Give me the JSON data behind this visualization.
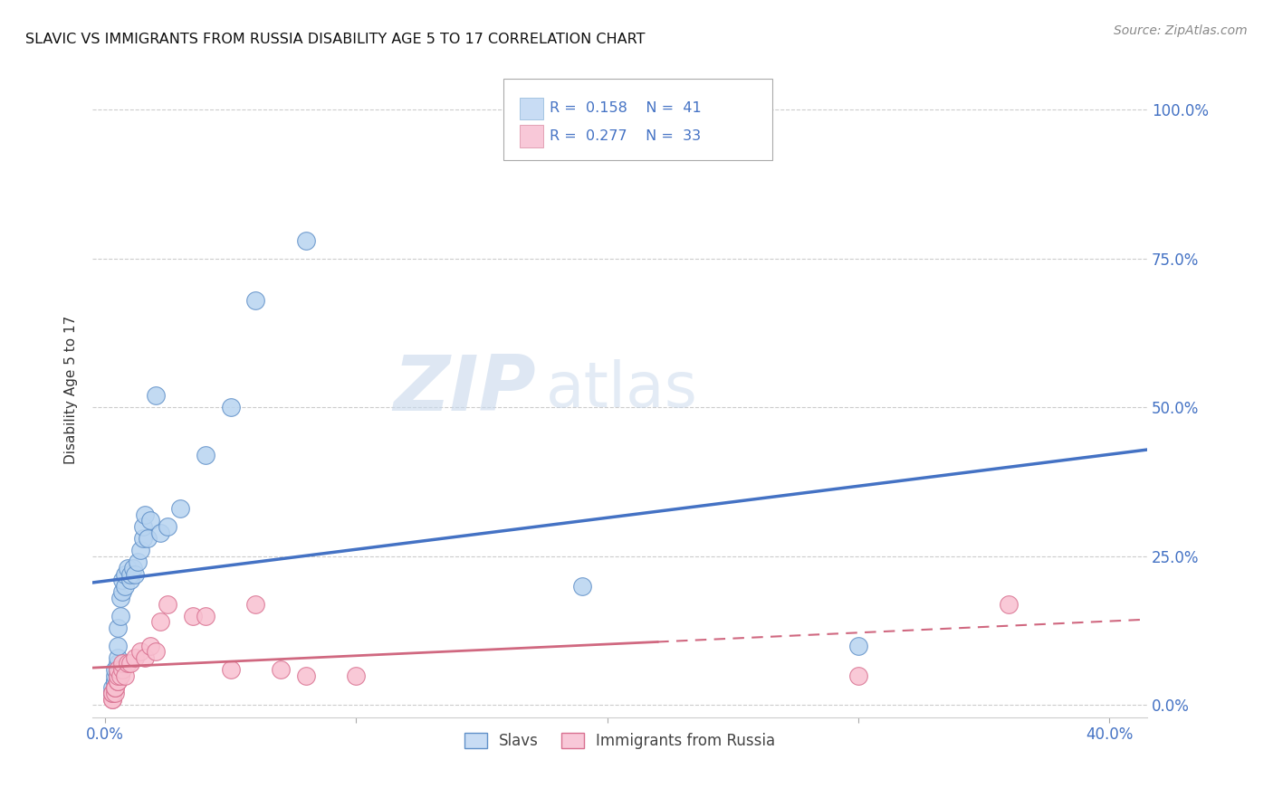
{
  "title": "SLAVIC VS IMMIGRANTS FROM RUSSIA DISABILITY AGE 5 TO 17 CORRELATION CHART",
  "source": "Source: ZipAtlas.com",
  "xlabel_ticks_show": [
    "0.0%",
    "40.0%"
  ],
  "xlabel_tick_vals_show": [
    0.0,
    0.4
  ],
  "ylabel": "Disability Age 5 to 17",
  "ylabel_ticks": [
    "0.0%",
    "25.0%",
    "50.0%",
    "75.0%",
    "100.0%"
  ],
  "ylabel_tick_vals": [
    0.0,
    0.25,
    0.5,
    0.75,
    1.0
  ],
  "xmin": -0.005,
  "xmax": 0.415,
  "ymin": -0.02,
  "ymax": 1.08,
  "slavs_R": 0.158,
  "slavs_N": 41,
  "russia_R": 0.277,
  "russia_N": 33,
  "slavs_color": "#B8D4F0",
  "russia_color": "#F8C0D0",
  "slavs_edge_color": "#6090C8",
  "russia_edge_color": "#D87090",
  "slavs_line_color": "#4472C4",
  "russia_line_color": "#D06880",
  "slavs_x": [
    0.003,
    0.003,
    0.003,
    0.004,
    0.004,
    0.004,
    0.004,
    0.005,
    0.005,
    0.005,
    0.005,
    0.005,
    0.005,
    0.006,
    0.006,
    0.007,
    0.007,
    0.008,
    0.008,
    0.009,
    0.01,
    0.01,
    0.011,
    0.012,
    0.013,
    0.014,
    0.015,
    0.015,
    0.016,
    0.017,
    0.018,
    0.02,
    0.022,
    0.025,
    0.03,
    0.04,
    0.05,
    0.06,
    0.08,
    0.19,
    0.3
  ],
  "slavs_y": [
    0.02,
    0.02,
    0.03,
    0.04,
    0.04,
    0.05,
    0.06,
    0.05,
    0.06,
    0.07,
    0.08,
    0.1,
    0.13,
    0.15,
    0.18,
    0.19,
    0.21,
    0.2,
    0.22,
    0.23,
    0.21,
    0.22,
    0.23,
    0.22,
    0.24,
    0.26,
    0.28,
    0.3,
    0.32,
    0.28,
    0.31,
    0.52,
    0.29,
    0.3,
    0.33,
    0.42,
    0.5,
    0.68,
    0.78,
    0.2,
    0.1
  ],
  "russia_x": [
    0.003,
    0.003,
    0.003,
    0.003,
    0.004,
    0.004,
    0.004,
    0.005,
    0.005,
    0.005,
    0.005,
    0.006,
    0.007,
    0.007,
    0.008,
    0.009,
    0.01,
    0.012,
    0.014,
    0.016,
    0.018,
    0.02,
    0.022,
    0.025,
    0.035,
    0.04,
    0.05,
    0.06,
    0.07,
    0.08,
    0.1,
    0.3,
    0.36
  ],
  "russia_y": [
    0.01,
    0.01,
    0.02,
    0.02,
    0.02,
    0.03,
    0.03,
    0.04,
    0.04,
    0.05,
    0.06,
    0.05,
    0.06,
    0.07,
    0.05,
    0.07,
    0.07,
    0.08,
    0.09,
    0.08,
    0.1,
    0.09,
    0.14,
    0.17,
    0.15,
    0.15,
    0.06,
    0.17,
    0.06,
    0.05,
    0.05,
    0.05,
    0.17
  ],
  "watermark_zip": "ZIP",
  "watermark_atlas": "atlas",
  "legend_box_color_slavs": "#C8DCF4",
  "legend_box_color_russia": "#F8C8D8",
  "legend_label_slavs": "Slavs",
  "legend_label_russia": "Immigrants from Russia",
  "grid_color": "#CCCCCC",
  "background_color": "#FFFFFF",
  "legend_text_color": "#4472C4",
  "tick_label_color": "#4472C4"
}
